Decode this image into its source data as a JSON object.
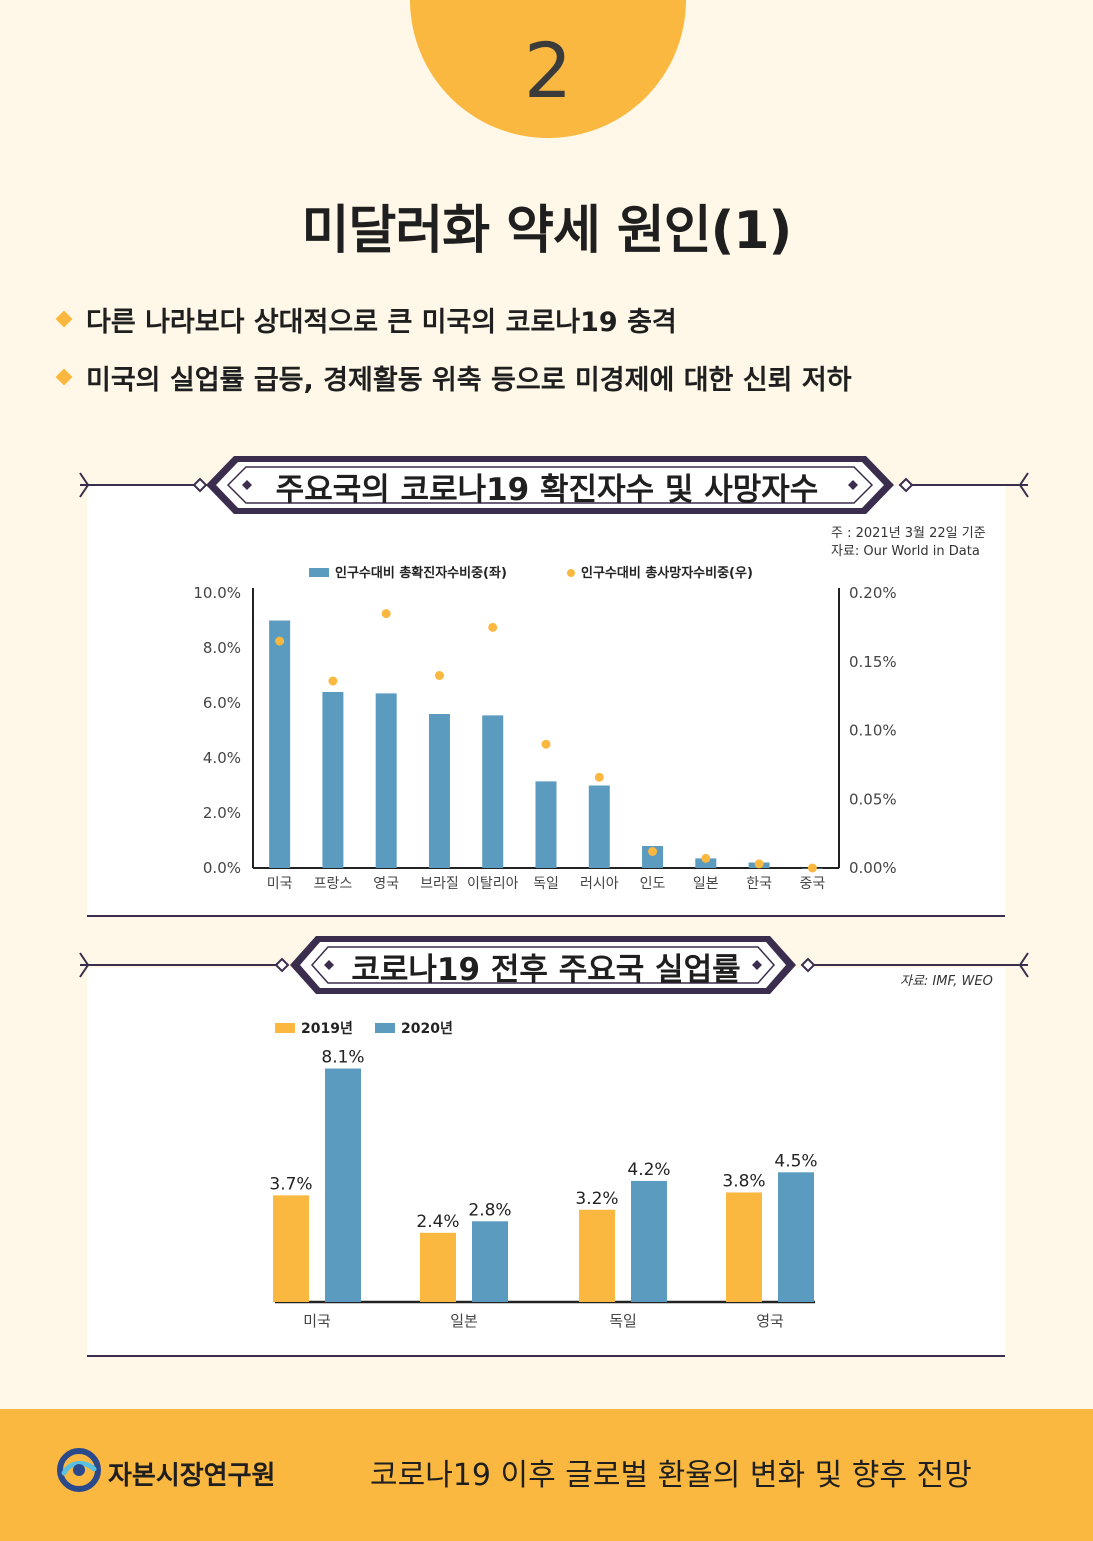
{
  "page_number": "2",
  "title": "미달러화 약세 원인(1)",
  "bullets": [
    "다른 나라보다 상대적으로 큰 미국의 코로나19 충격",
    "미국의 실업률 급등, 경제활동 위축 등으로 미경제에 대한 신뢰 저하"
  ],
  "colors": {
    "accent": "#fbb840",
    "blue": "#5b9bbf",
    "dark": "#3a2d4d",
    "background": "#fff8e8"
  },
  "chart_data": [
    {
      "type": "bar",
      "title": "주요국의 코로나19 확진자수 및 사망자수",
      "note": "주 : 2021년 3월 22일 기준",
      "source": "자료: Our World in Data",
      "categories": [
        "미국",
        "프랑스",
        "영국",
        "브라질",
        "이탈리아",
        "독일",
        "러시아",
        "인도",
        "일본",
        "한국",
        "중국"
      ],
      "series": [
        {
          "name": "인구수대비 총확진자수비중(좌)",
          "type": "bar",
          "axis": "left",
          "color": "#5b9bbf",
          "values": [
            9.0,
            6.4,
            6.35,
            5.6,
            5.55,
            3.15,
            3.0,
            0.8,
            0.35,
            0.2,
            0.0
          ]
        },
        {
          "name": "인구수대비 총사망자수비중(우)",
          "type": "scatter",
          "axis": "right",
          "color": "#fbb840",
          "values": [
            0.165,
            0.136,
            0.185,
            0.14,
            0.175,
            0.09,
            0.066,
            0.012,
            0.007,
            0.003,
            0.0
          ]
        }
      ],
      "ylim_left": [
        0,
        10
      ],
      "yticks_left": [
        "10.0%",
        "8.0%",
        "6.0%",
        "4.0%",
        "2.0%",
        "0.0%"
      ],
      "ylim_right": [
        0,
        0.2
      ],
      "yticks_right": [
        "0.20%",
        "0.15%",
        "0.10%",
        "0.05%",
        "0.00%"
      ],
      "legend_position": "top-center",
      "grid": false
    },
    {
      "type": "bar",
      "title": "코로나19 전후 주요국 실업률",
      "source": "자료: IMF, WEO",
      "categories": [
        "미국",
        "일본",
        "독일",
        "영국"
      ],
      "series": [
        {
          "name": "2019년",
          "color": "#fbb840",
          "values": [
            3.7,
            2.4,
            3.2,
            3.8
          ],
          "labels": [
            "3.7%",
            "2.4%",
            "3.2%",
            "3.8%"
          ]
        },
        {
          "name": "2020년",
          "color": "#5b9bbf",
          "values": [
            8.1,
            2.8,
            4.2,
            4.5
          ],
          "labels": [
            "8.1%",
            "2.8%",
            "4.2%",
            "4.5%"
          ]
        }
      ],
      "ylim": [
        0,
        8.5
      ],
      "legend_position": "top-left",
      "grid": false
    }
  ],
  "footer": {
    "org": "자본시장연구원",
    "logo_icon": "kcmi-logo-icon",
    "title": "코로나19 이후 글로벌 환율의 변화 및 향후 전망"
  }
}
